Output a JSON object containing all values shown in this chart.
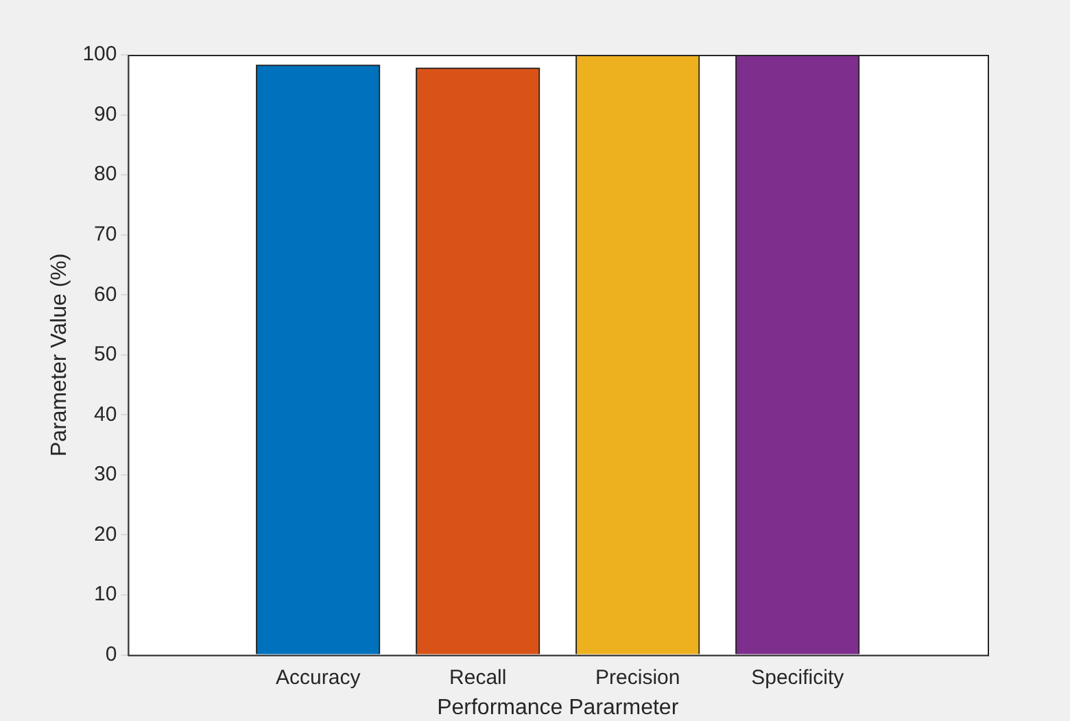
{
  "chart_data": {
    "type": "bar",
    "categories": [
      "Accuracy",
      "Recall",
      "Precision",
      "Specificity"
    ],
    "values": [
      98.3,
      97.8,
      100,
      100
    ],
    "colors": [
      "#0072bd",
      "#d95319",
      "#edb120",
      "#7e2f8e"
    ],
    "xlabel": "Performance Pararmeter",
    "ylabel": "Parameter Value (%)",
    "ylim": [
      0,
      100
    ],
    "yticks": [
      0,
      10,
      20,
      30,
      40,
      50,
      60,
      70,
      80,
      90,
      100
    ],
    "grid": false,
    "legend": false
  }
}
